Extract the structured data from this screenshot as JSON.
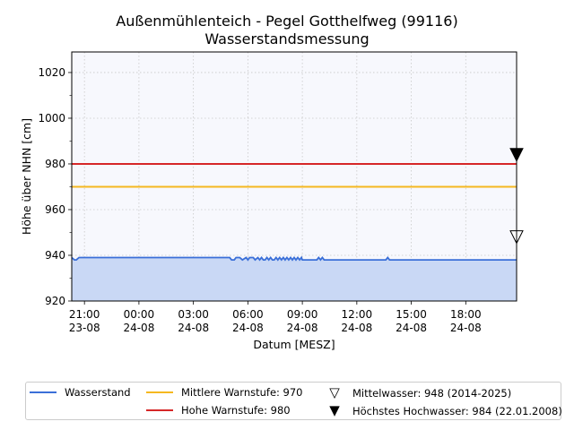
{
  "chart_data": {
    "type": "line",
    "title": "Außenmühlenteich - Pegel Gotthelfweg (99116)",
    "subtitle": "Wasserstandsmessung",
    "xlabel": "Datum [MESZ]",
    "ylabel": "Höhe über NHN [cm]",
    "ylim": [
      920,
      1029
    ],
    "yticks": [
      920,
      940,
      960,
      980,
      1000,
      1020
    ],
    "x_range_hours": [
      -3.7,
      20.8
    ],
    "xticks": [
      {
        "hour": -3,
        "time": "21:00",
        "date": "23-08"
      },
      {
        "hour": 0,
        "time": "00:00",
        "date": "24-08"
      },
      {
        "hour": 3,
        "time": "03:00",
        "date": "24-08"
      },
      {
        "hour": 6,
        "time": "06:00",
        "date": "24-08"
      },
      {
        "hour": 9,
        "time": "09:00",
        "date": "24-08"
      },
      {
        "hour": 12,
        "time": "12:00",
        "date": "24-08"
      },
      {
        "hour": 15,
        "time": "15:00",
        "date": "24-08"
      },
      {
        "hour": 18,
        "time": "18:00",
        "date": "24-08"
      }
    ],
    "grid": true,
    "legend_position": "bottom",
    "series": [
      {
        "name": "Wasserstand",
        "color": "#3a6fd8",
        "fill": "#c9d8f5",
        "x": [
          -3.7,
          -3.55,
          -3.45,
          -3.3,
          5.0,
          5.1,
          5.25,
          5.35,
          5.45,
          5.55,
          5.7,
          5.9,
          6.0,
          6.1,
          6.2,
          6.3,
          6.4,
          6.55,
          6.65,
          6.75,
          6.85,
          6.95,
          7.05,
          7.15,
          7.25,
          7.35,
          7.45,
          7.55,
          7.65,
          7.75,
          7.85,
          7.95,
          8.05,
          8.15,
          8.25,
          8.35,
          8.45,
          8.55,
          8.65,
          8.75,
          8.85,
          8.95,
          9.0,
          9.8,
          9.9,
          10.0,
          10.1,
          10.2,
          10.3,
          13.6,
          13.7,
          13.8,
          20.8
        ],
        "y": [
          939,
          938,
          938,
          939,
          939,
          938,
          938,
          939,
          939,
          939,
          938,
          939,
          938,
          939,
          939,
          939,
          938,
          939,
          938,
          939,
          938,
          938,
          939,
          938,
          939,
          938,
          938,
          939,
          938,
          939,
          938,
          939,
          938,
          939,
          938,
          939,
          938,
          939,
          938,
          939,
          938,
          939,
          938,
          938,
          939,
          938,
          939,
          938,
          938,
          938,
          939,
          938,
          938
        ]
      },
      {
        "name": "Mittlere Warnstufe: 970",
        "color": "#f5b820",
        "y": 970
      },
      {
        "name": "Hohe Warnstufe: 980",
        "color": "#d62728",
        "y": 980
      }
    ],
    "markers": [
      {
        "name": "Mittelwasser: 948 (2014-2025)",
        "y": 948,
        "symbol": "▽"
      },
      {
        "name": "Höchstes Hochwasser: 984 (22.01.2008)",
        "y": 984,
        "symbol": "▼"
      }
    ]
  }
}
